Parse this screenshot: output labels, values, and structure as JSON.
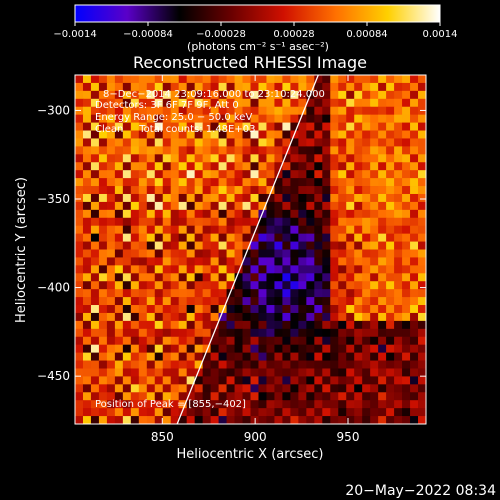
{
  "chart_data": {
    "type": "heatmap",
    "title": "Reconstructed RHESSI Image",
    "xlabel": "Heliocentric X (arcsec)",
    "ylabel": "Heliocentric Y (arcsec)",
    "xlim": [
      803,
      992
    ],
    "ylim": [
      -477,
      -280
    ],
    "x_ticks": [
      850,
      900,
      950
    ],
    "y_ticks": [
      -300,
      -350,
      -400,
      -450
    ],
    "x_tick_labels": [
      "850",
      "900",
      "950"
    ],
    "y_tick_labels": [
      "−300",
      "−350",
      "−400",
      "−450"
    ],
    "colorbar": {
      "min": -0.0014,
      "max": 0.0014,
      "ticks": [
        -0.0014,
        -0.00084,
        -0.00028,
        0.00028,
        0.00084,
        0.0014
      ],
      "tick_labels": [
        "−0.0014",
        "−0.00084",
        "−0.00028",
        "0.00028",
        "0.00084",
        "0.0014"
      ],
      "units_label": "(photons cm⁻² s⁻¹ asec⁻²)",
      "colors": [
        "#0000ff",
        "#5a00c8",
        "#000000",
        "#6a0000",
        "#d01000",
        "#ff7000",
        "#ffd000",
        "#ffffff"
      ]
    },
    "annotations": [
      "8−Dec−2014 23:09:16.000 to 23:10:24.000",
      "Detectors: 3F 6F 7F 9F, Att 0",
      "Energy Range: 25.0 − 50.0 keV",
      "Clean     Total counts: 1.48E+03",
      "Position of Peak = [855,−402]"
    ],
    "peak": {
      "x": 855,
      "y": -402
    },
    "limb_line": [
      [
        858,
        -477
      ],
      [
        934,
        -280
      ]
    ],
    "grid": false
  },
  "footer": {
    "date_stamp": "20−May−2022 08:34"
  }
}
